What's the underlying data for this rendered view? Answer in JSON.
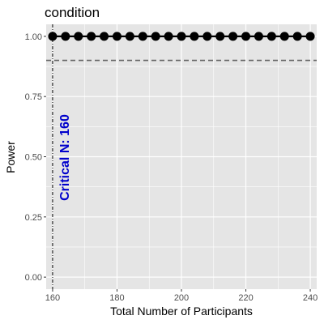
{
  "chart_data": {
    "type": "line",
    "title": "condition",
    "xlabel": "Total Number of Participants",
    "ylabel": "Power",
    "x_ticks": [
      160,
      180,
      200,
      220,
      240
    ],
    "y_ticks": [
      0.0,
      0.25,
      0.5,
      0.75,
      1.0
    ],
    "y_tick_labels": [
      "0.00",
      "0.25",
      "0.50",
      "0.75",
      "1.00"
    ],
    "xlim": [
      158,
      242
    ],
    "ylim": [
      -0.05,
      1.05
    ],
    "series": [
      {
        "x": [
          160,
          164,
          168,
          172,
          176,
          180,
          184,
          188,
          192,
          196,
          200,
          204,
          208,
          212,
          216,
          220,
          224,
          228,
          232,
          236,
          240
        ],
        "y": [
          1,
          1,
          1,
          1,
          1,
          1,
          1,
          1,
          1,
          1,
          1,
          1,
          1,
          1,
          1,
          1,
          1,
          1,
          1,
          1,
          1
        ]
      }
    ],
    "reference_lines": {
      "horizontal_power": 0.9,
      "vertical_n": 160
    },
    "annotation": {
      "text": "Critical N: 160",
      "color": "#0000cc"
    },
    "grid": true,
    "panel_color": "#e5e5e5",
    "grid_color": "#ffffff"
  }
}
